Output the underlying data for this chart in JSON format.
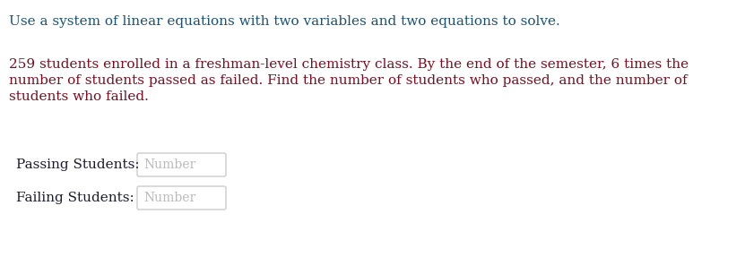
{
  "title_text": "Use a system of linear equations with two variables and two equations to solve.",
  "title_color": "#1a5276",
  "body_text_line1": "259 students enrolled in a freshman-level chemistry class. By the end of the semester, 6 times the",
  "body_text_line2": "number of students passed as failed. Find the number of students who passed, and the number of",
  "body_text_line3": "students who failed.",
  "body_color": "#7B0D1E",
  "label1": "Passing Students:",
  "label2": "Failing Students:",
  "placeholder": "Number",
  "label_color": "#1a1a2e",
  "placeholder_color": "#bbbbbb",
  "bg_color": "#ffffff",
  "box_edge_color": "#cccccc",
  "box_face_color": "#ffffff",
  "font_family": "DejaVu Serif",
  "title_fontsize": 11,
  "body_fontsize": 11,
  "label_fontsize": 11,
  "placeholder_fontsize": 10
}
